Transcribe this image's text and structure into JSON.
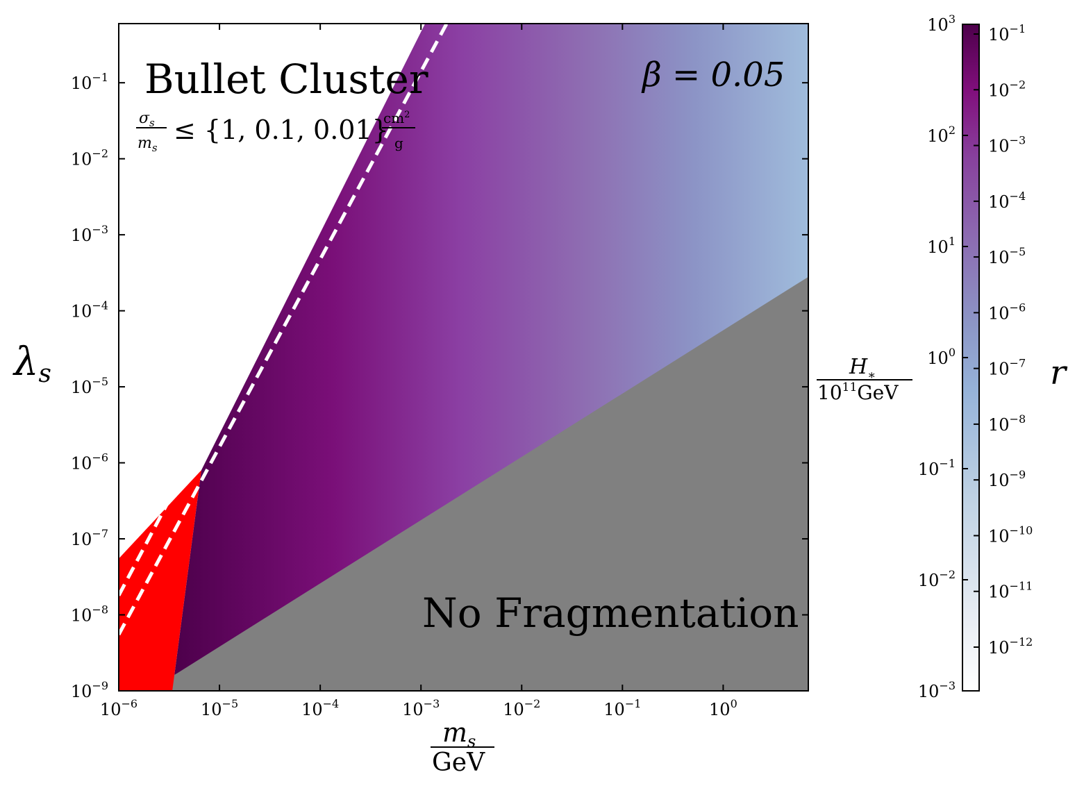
{
  "chart_data": {
    "type": "heatmap",
    "xlabel": "m_s / GeV",
    "ylabel": "λ_s",
    "x_scale": "log",
    "y_scale": "log",
    "xlim": [
      1e-06,
      7
    ],
    "ylim": [
      1e-09,
      0.6
    ],
    "x_ticks": [
      {
        "value": 1e-06,
        "base": "10",
        "exp": "−6"
      },
      {
        "value": 1e-05,
        "base": "10",
        "exp": "−5"
      },
      {
        "value": 0.0001,
        "base": "10",
        "exp": "−4"
      },
      {
        "value": 0.001,
        "base": "10",
        "exp": "−3"
      },
      {
        "value": 0.01,
        "base": "10",
        "exp": "−2"
      },
      {
        "value": 0.1,
        "base": "10",
        "exp": "−1"
      },
      {
        "value": 1,
        "base": "10",
        "exp": "0"
      }
    ],
    "y_ticks": [
      {
        "value": 1e-09,
        "base": "10",
        "exp": "−9"
      },
      {
        "value": 1e-08,
        "base": "10",
        "exp": "−8"
      },
      {
        "value": 1e-07,
        "base": "10",
        "exp": "−7"
      },
      {
        "value": 1e-06,
        "base": "10",
        "exp": "−6"
      },
      {
        "value": 1e-05,
        "base": "10",
        "exp": "−5"
      },
      {
        "value": 0.0001,
        "base": "10",
        "exp": "−4"
      },
      {
        "value": 0.001,
        "base": "10",
        "exp": "−3"
      },
      {
        "value": 0.01,
        "base": "10",
        "exp": "−2"
      },
      {
        "value": 0.1,
        "base": "10",
        "exp": "−1"
      }
    ],
    "regions": {
      "no_fragmentation": {
        "label": "No Fragmentation",
        "color": "#808080",
        "boundary": [
          [
            2e-06,
            1e-09
          ],
          [
            7,
            0.00028
          ]
        ]
      },
      "excluded_red": {
        "color": "#ff0000",
        "polygon": [
          [
            1e-06,
            1e-09
          ],
          [
            3.4e-06,
            1e-09
          ],
          [
            6.6e-06,
            8e-07
          ],
          [
            1e-06,
            5.5e-08
          ]
        ]
      },
      "upper_edge": [
        [
          1e-06,
          5.5e-08
        ],
        [
          0.0011,
          0.6
        ]
      ],
      "colored_strip_upper_edge": [
        [
          6.6e-06,
          8e-07
        ],
        [
          0.0011,
          0.6
        ],
        [
          7,
          0.6
        ]
      ]
    },
    "bullet_cluster": {
      "title": "Bullet Cluster",
      "constraint_lhs_num": "σ",
      "constraint_lhs_num_sub": "s",
      "constraint_lhs_den": "m",
      "constraint_lhs_den_sub": "s",
      "constraint_relation": "≤ {1, 0.1, 0.01}",
      "constraint_unit_num": "cm",
      "constraint_unit_num_exp": "2",
      "constraint_unit_den": "g",
      "line_style": "dashed",
      "line_color": "#ffffff",
      "lines": [
        {
          "points": [
            [
              1e-06,
              1.8e-08
            ],
            [
              0.001,
              0.6
            ]
          ]
        },
        {
          "points": [
            [
              1e-06,
              5.5e-09
            ],
            [
              0.0018,
              0.6
            ]
          ]
        }
      ]
    },
    "beta_annotation": "β = 0.05",
    "colorbar": {
      "label": "r",
      "right_label": "r",
      "left_axis_label_num": "H",
      "left_axis_label_num_sub": "∗",
      "left_axis_label_den": "10",
      "left_axis_label_den_exp": "11",
      "left_axis_label_den_unit": "GeV",
      "left_ticks": [
        {
          "base": "10",
          "exp": "−3"
        },
        {
          "base": "10",
          "exp": "−2"
        },
        {
          "base": "10",
          "exp": "−1"
        },
        {
          "base": "10",
          "exp": "0"
        },
        {
          "base": "10",
          "exp": "1"
        },
        {
          "base": "10",
          "exp": "2"
        },
        {
          "base": "10",
          "exp": "3"
        }
      ],
      "right_ticks": [
        {
          "base": "10",
          "exp": "−12"
        },
        {
          "base": "10",
          "exp": "−11"
        },
        {
          "base": "10",
          "exp": "−10"
        },
        {
          "base": "10",
          "exp": "−9"
        },
        {
          "base": "10",
          "exp": "−8"
        },
        {
          "base": "10",
          "exp": "−7"
        },
        {
          "base": "10",
          "exp": "−6"
        },
        {
          "base": "10",
          "exp": "−5"
        },
        {
          "base": "10",
          "exp": "−4"
        },
        {
          "base": "10",
          "exp": "−3"
        },
        {
          "base": "10",
          "exp": "−2"
        },
        {
          "base": "10",
          "exp": "−1"
        }
      ],
      "colormap": [
        "#ffffff",
        "#e6ebf2",
        "#bcd0e3",
        "#96b3d9",
        "#8c96c6",
        "#8c6bb1",
        "#88419d",
        "#810f7c",
        "#4d004b"
      ]
    },
    "grid": false,
    "legend": "none"
  }
}
